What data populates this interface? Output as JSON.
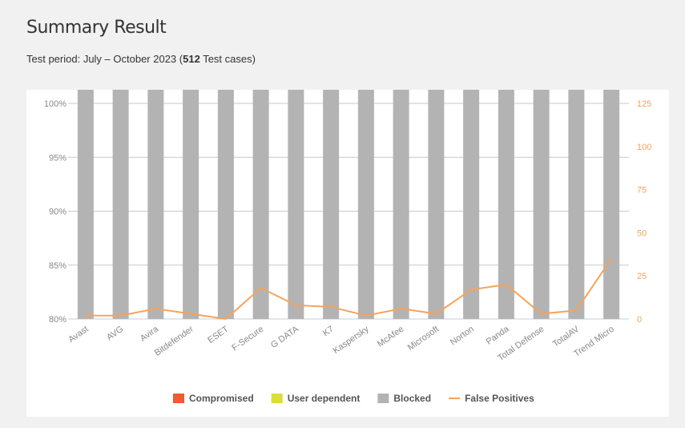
{
  "header": {
    "title": "Summary Result",
    "period_prefix": "Test period: July – October 2023 (",
    "period_count": "512",
    "period_suffix": " Test cases)"
  },
  "chart_data": {
    "type": "bar",
    "stacked": true,
    "categories": [
      "Avast",
      "AVG",
      "Avira",
      "Bitdefender",
      "ESET",
      "F-Secure",
      "G DATA",
      "K7",
      "Kaspersky",
      "McAfee",
      "Microsoft",
      "Norton",
      "Panda",
      "Total Defense",
      "TotalAV",
      "Trend Micro"
    ],
    "series": [
      {
        "name": "Blocked",
        "color": "#b3b3b3",
        "values": [
          100,
          100,
          99.3,
          99.6,
          98.1,
          100,
          99.6,
          98.5,
          99.6,
          99.6,
          98.7,
          99.7,
          98.5,
          98.5,
          98.7,
          100
        ]
      },
      {
        "name": "User dependent",
        "color": "#d9df35",
        "values": [
          0,
          0,
          0,
          0,
          0,
          0,
          0,
          0,
          0,
          0,
          0,
          0.3,
          0,
          0,
          0,
          0
        ]
      },
      {
        "name": "Compromised",
        "color": "#f05a30",
        "values": [
          0,
          0,
          0.7,
          0.4,
          1.9,
          0,
          0.4,
          1.5,
          0.4,
          0.4,
          1.3,
          0,
          1.5,
          1.5,
          1.3,
          0
        ]
      },
      {
        "name": "False Positives",
        "type": "line",
        "axis": "right",
        "color": "#f5a35c",
        "values": [
          2,
          2,
          6,
          3,
          0,
          18,
          8,
          7,
          2,
          6,
          3,
          17,
          20,
          3,
          5,
          35
        ]
      }
    ],
    "legend": [
      "Compromised",
      "User dependent",
      "Blocked",
      "False Positives"
    ],
    "legend_position": "bottom",
    "ylim": [
      80,
      100
    ],
    "yticks": [
      "80%",
      "85%",
      "90%",
      "95%",
      "100%"
    ],
    "y2lim": [
      0,
      125
    ],
    "y2ticks": [
      "0",
      "25",
      "50",
      "75",
      "100",
      "125"
    ],
    "grid": true
  }
}
